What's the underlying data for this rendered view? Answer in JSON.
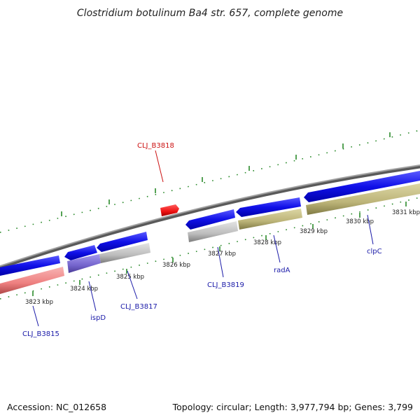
{
  "title": "Clostridium botulinum Ba4 str. 657, complete genome",
  "footer": {
    "accession": "Accession: NC_012658",
    "summary": "Topology: circular; Length: 3,977,794 bp; Genes: 3,799"
  },
  "ticks": [
    "3823 kbp",
    "3824 kbp",
    "3825 kbp",
    "3826 kbp",
    "3827 kbp",
    "3828 kbp",
    "3829 kbp",
    "3830 kbp",
    "3831 kbp"
  ],
  "genes": [
    {
      "name": "CLJ_B3815",
      "color": "#1a1aa8"
    },
    {
      "name": "ispD",
      "color": "#1a1aa8"
    },
    {
      "name": "CLJ_B3817",
      "color": "#1a1aa8"
    },
    {
      "name": "CLJ_B3818",
      "color": "#cc1111"
    },
    {
      "name": "CLJ_B3819",
      "color": "#1a1aa8"
    },
    {
      "name": "radA",
      "color": "#1a1aa8"
    },
    {
      "name": "clpC",
      "color": "#1a1aa8"
    }
  ],
  "colors": {
    "cds_forward": "#1010e8",
    "cds_reverse_marker": "#ee1111",
    "feature_pink": "#f08a8a",
    "feature_purple": "#7a6ad0",
    "feature_gray": "#bdbdbd",
    "feature_olive": "#bdb67a",
    "backbone": "#8a8a8a",
    "tick_marks": "#228b22"
  }
}
